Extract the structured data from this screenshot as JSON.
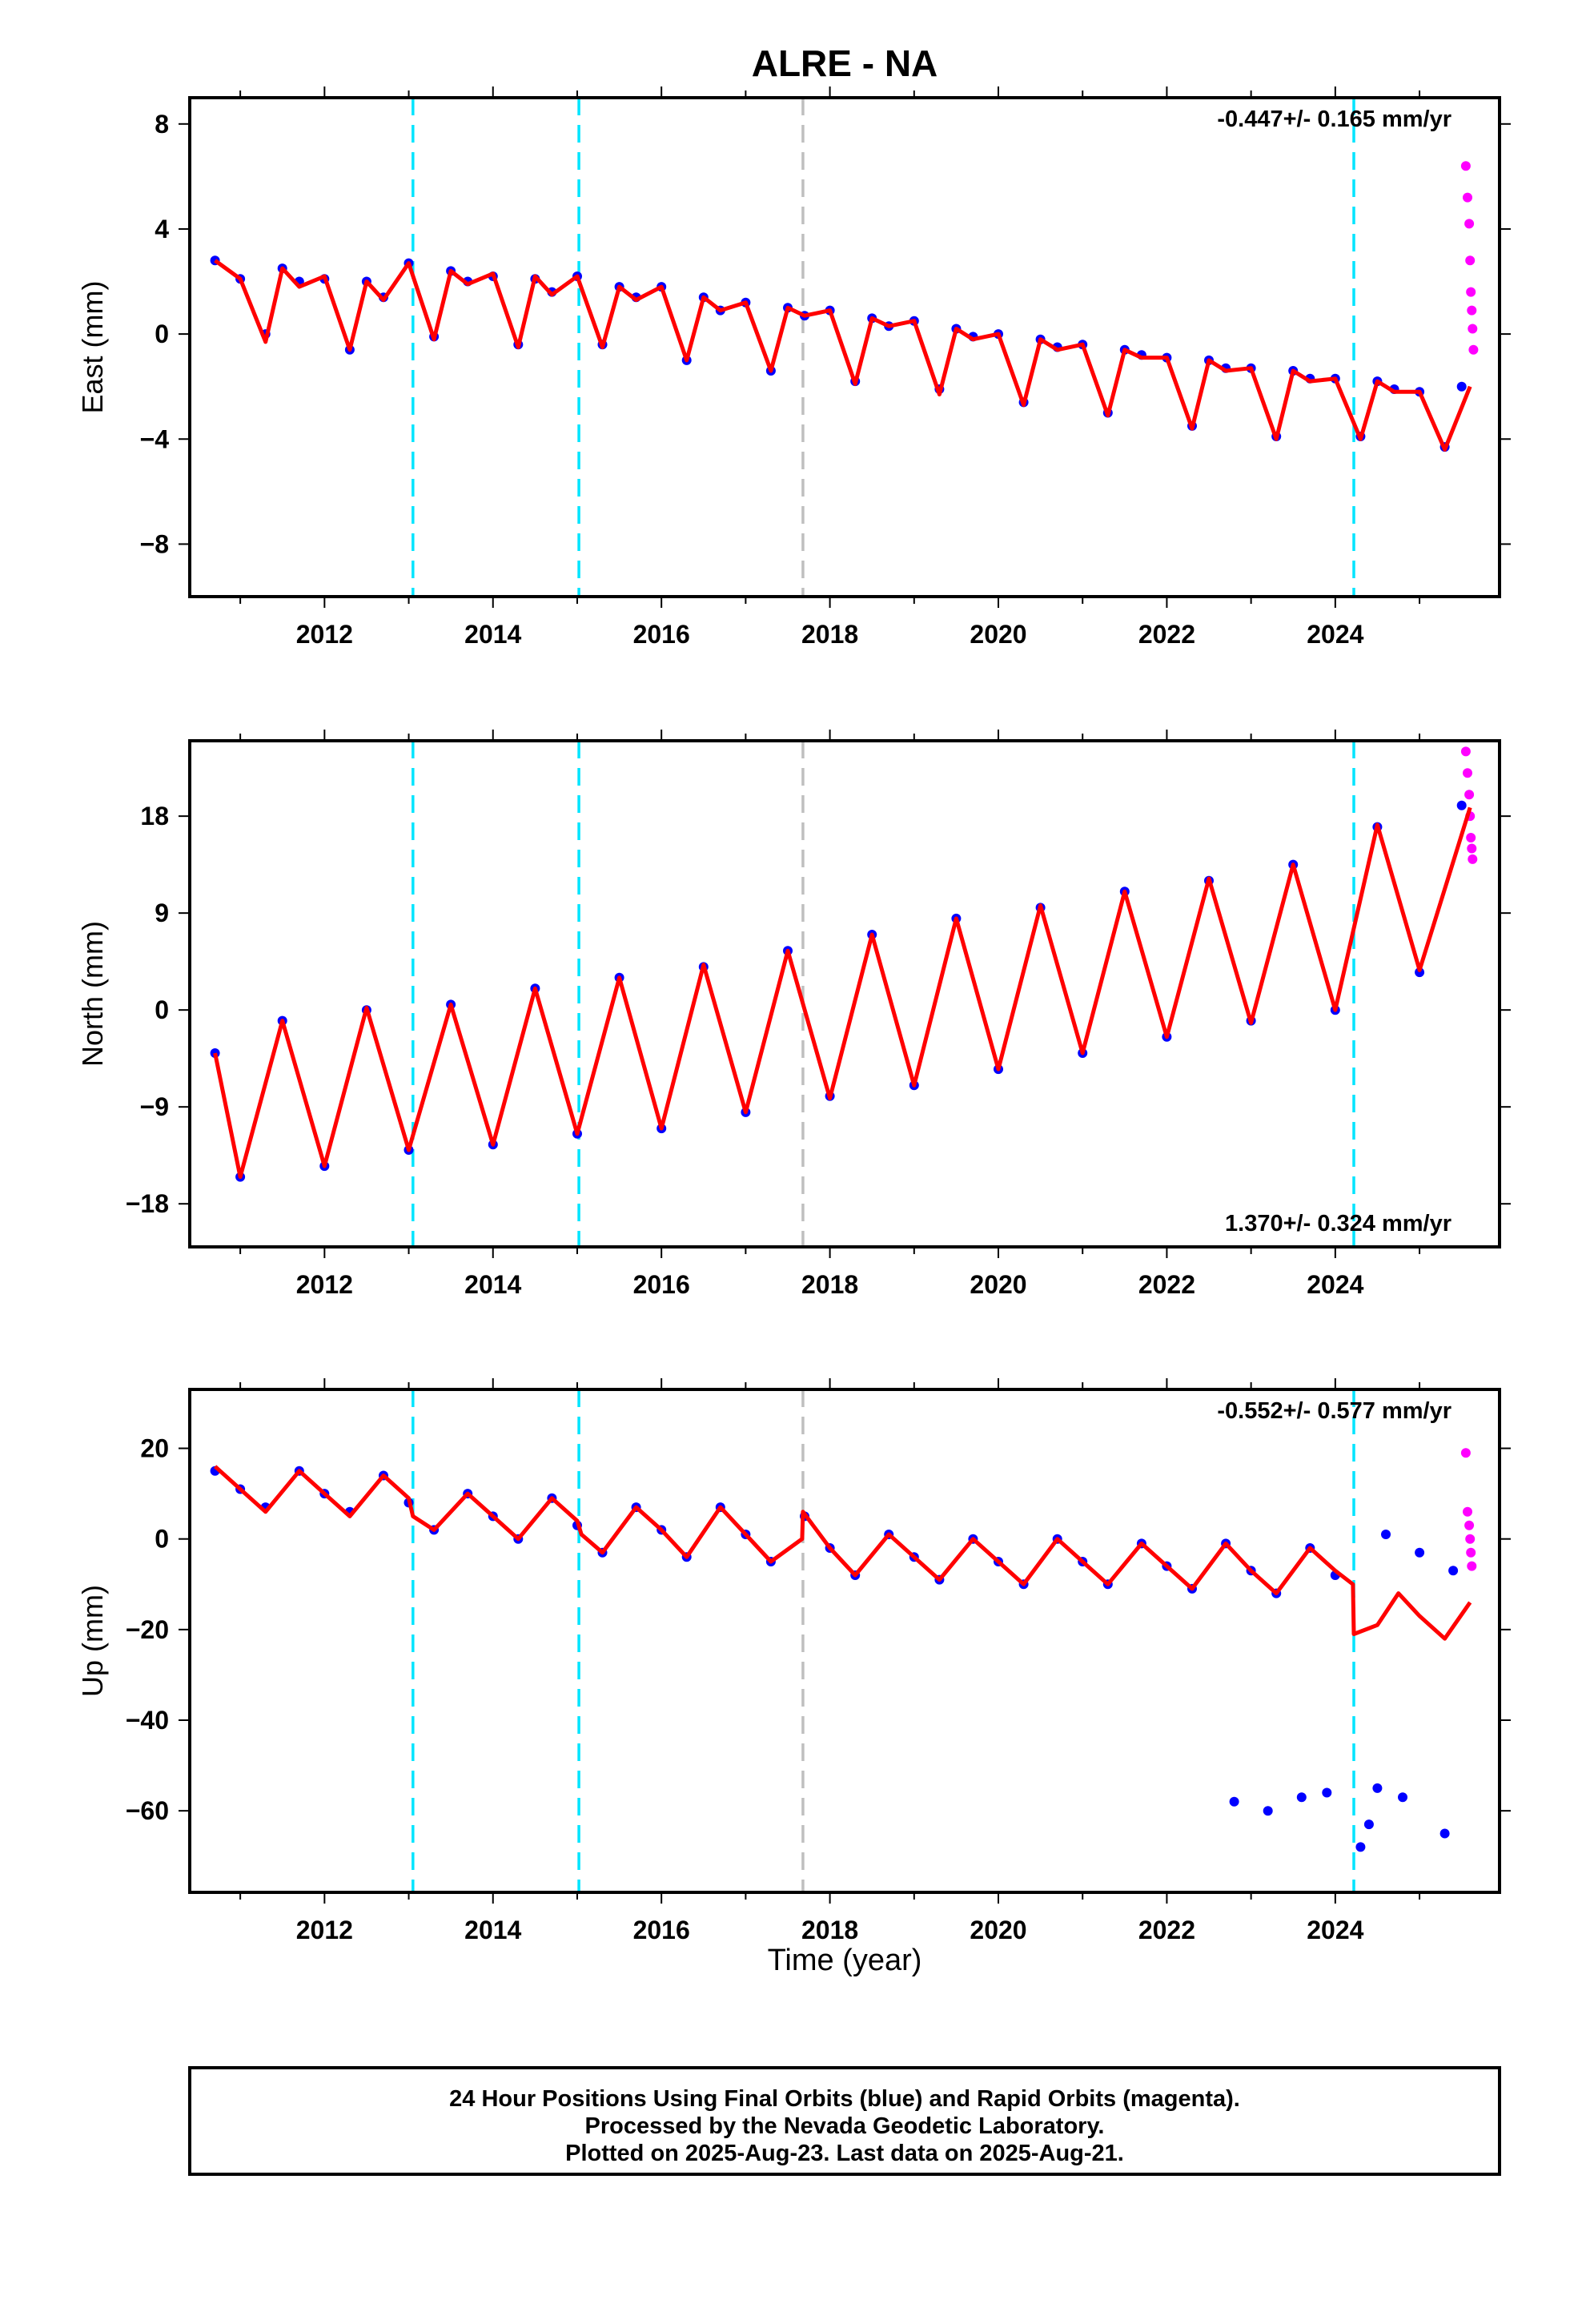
{
  "title": "ALRE - NA",
  "xlabel": "Time (year)",
  "footer": [
    "24 Hour Positions Using Final Orbits (blue) and Rapid Orbits (magenta).",
    "Processed by the Nevada Geodetic Laboratory.",
    "Plotted on 2025-Aug-23. Last data on 2025-Aug-21."
  ],
  "colors": {
    "final_orbits": "#0000ff",
    "rapid_orbits": "#ff00ff",
    "model_fit": "#ff0000",
    "equipment_change": "#00e5ff",
    "other_event": "#bfbfbf"
  },
  "chart_data": [
    {
      "type": "scatter",
      "panel": "east",
      "title": "ALRE - NA",
      "xlabel": "",
      "ylabel": "East (mm)",
      "xlim": [
        2010.4,
        2025.95
      ],
      "ylim": [
        -10,
        9
      ],
      "xticks": [
        2012,
        2014,
        2016,
        2018,
        2020,
        2022,
        2024
      ],
      "yticks": [
        -8,
        -4,
        0,
        4,
        8
      ],
      "ytick_labels": [
        "−8",
        "−4",
        "0",
        "4",
        "8"
      ],
      "rate_text": "-0.447+/- 0.165 mm/yr",
      "rate_position": "top-right",
      "events": [
        {
          "year": 2013.05,
          "kind": "equipment_change"
        },
        {
          "year": 2015.02,
          "kind": "equipment_change"
        },
        {
          "year": 2017.68,
          "kind": "other_event"
        },
        {
          "year": 2024.22,
          "kind": "equipment_change"
        }
      ],
      "series": [
        {
          "name": "Final Orbits",
          "color": "#0000ff",
          "x": [
            2010.7,
            2011.0,
            2011.3,
            2011.5,
            2011.7,
            2012.0,
            2012.3,
            2012.5,
            2012.7,
            2013.0,
            2013.3,
            2013.5,
            2013.7,
            2014.0,
            2014.3,
            2014.5,
            2014.7,
            2015.0,
            2015.3,
            2015.5,
            2015.7,
            2016.0,
            2016.3,
            2016.5,
            2016.7,
            2017.0,
            2017.3,
            2017.5,
            2017.7,
            2018.0,
            2018.3,
            2018.5,
            2018.7,
            2019.0,
            2019.3,
            2019.5,
            2019.7,
            2020.0,
            2020.3,
            2020.5,
            2020.7,
            2021.0,
            2021.3,
            2021.5,
            2021.7,
            2022.0,
            2022.3,
            2022.5,
            2022.7,
            2023.0,
            2023.3,
            2023.5,
            2023.7,
            2024.0,
            2024.3,
            2024.5,
            2024.7,
            2025.0,
            2025.3,
            2025.5
          ],
          "y": [
            2.8,
            2.1,
            0.0,
            2.5,
            2.0,
            2.1,
            -0.6,
            2.0,
            1.4,
            2.7,
            -0.1,
            2.4,
            2.0,
            2.2,
            -0.4,
            2.1,
            1.6,
            2.2,
            -0.4,
            1.8,
            1.4,
            1.8,
            -1.0,
            1.4,
            0.9,
            1.2,
            -1.4,
            1.0,
            0.7,
            0.9,
            -1.8,
            0.6,
            0.3,
            0.5,
            -2.1,
            0.2,
            -0.1,
            0.0,
            -2.6,
            -0.2,
            -0.5,
            -0.4,
            -3.0,
            -0.6,
            -0.8,
            -0.9,
            -3.5,
            -1.0,
            -1.3,
            -1.3,
            -3.9,
            -1.4,
            -1.7,
            -1.7,
            -3.9,
            -1.8,
            -2.1,
            -2.2,
            -4.3,
            -2.0
          ]
        },
        {
          "name": "Rapid Orbits",
          "color": "#ff00ff",
          "x": [
            2025.55,
            2025.57,
            2025.59,
            2025.6,
            2025.61,
            2025.62,
            2025.63,
            2025.64
          ],
          "y": [
            6.4,
            5.2,
            4.2,
            2.8,
            1.6,
            0.9,
            0.2,
            -0.6
          ]
        },
        {
          "name": "Model fit",
          "color": "#ff0000",
          "x": [
            2010.7,
            2011.0,
            2011.3,
            2011.5,
            2011.7,
            2012.0,
            2012.3,
            2012.5,
            2012.7,
            2013.0,
            2013.3,
            2013.5,
            2013.7,
            2014.0,
            2014.3,
            2014.5,
            2014.7,
            2015.0,
            2015.3,
            2015.5,
            2015.7,
            2016.0,
            2016.3,
            2016.5,
            2016.7,
            2017.0,
            2017.3,
            2017.5,
            2017.7,
            2018.0,
            2018.3,
            2018.5,
            2018.7,
            2019.0,
            2019.3,
            2019.5,
            2019.7,
            2020.0,
            2020.3,
            2020.5,
            2020.7,
            2021.0,
            2021.3,
            2021.5,
            2021.7,
            2022.0,
            2022.3,
            2022.5,
            2022.7,
            2023.0,
            2023.3,
            2023.5,
            2023.7,
            2024.0,
            2024.3,
            2024.5,
            2024.7,
            2025.0,
            2025.3,
            2025.6
          ],
          "y": [
            2.8,
            2.1,
            -0.3,
            2.5,
            1.8,
            2.2,
            -0.6,
            2.0,
            1.3,
            2.7,
            -0.2,
            2.4,
            1.9,
            2.3,
            -0.5,
            2.2,
            1.5,
            2.2,
            -0.5,
            1.8,
            1.3,
            1.8,
            -1.0,
            1.4,
            0.9,
            1.2,
            -1.4,
            1.0,
            0.7,
            0.9,
            -1.9,
            0.6,
            0.3,
            0.5,
            -2.3,
            0.2,
            -0.2,
            0.0,
            -2.7,
            -0.2,
            -0.6,
            -0.4,
            -3.1,
            -0.6,
            -0.9,
            -0.9,
            -3.6,
            -1.0,
            -1.4,
            -1.3,
            -4.0,
            -1.4,
            -1.8,
            -1.7,
            -4.0,
            -1.8,
            -2.2,
            -2.2,
            -4.4,
            -2.0
          ]
        }
      ]
    },
    {
      "type": "scatter",
      "panel": "north",
      "xlabel": "",
      "ylabel": "North (mm)",
      "xlim": [
        2010.4,
        2025.95
      ],
      "ylim": [
        -22,
        25
      ],
      "xticks": [
        2012,
        2014,
        2016,
        2018,
        2020,
        2022,
        2024
      ],
      "yticks": [
        -18,
        -9,
        0,
        9,
        18
      ],
      "ytick_labels": [
        "−18",
        "−9",
        "0",
        "9",
        "18"
      ],
      "rate_text": "1.370+/- 0.324 mm/yr",
      "rate_position": "bottom-right",
      "events": [
        {
          "year": 2013.05,
          "kind": "equipment_change"
        },
        {
          "year": 2015.02,
          "kind": "equipment_change"
        },
        {
          "year": 2017.68,
          "kind": "other_event"
        },
        {
          "year": 2024.22,
          "kind": "equipment_change"
        }
      ],
      "series": [
        {
          "name": "Final Orbits",
          "color": "#0000ff",
          "x": [
            2010.7,
            2011.0,
            2011.5,
            2012.0,
            2012.5,
            2013.0,
            2013.5,
            2014.0,
            2014.5,
            2015.0,
            2015.5,
            2016.0,
            2016.5,
            2017.0,
            2017.5,
            2018.0,
            2018.5,
            2019.0,
            2019.5,
            2020.0,
            2020.5,
            2021.0,
            2021.5,
            2022.0,
            2022.5,
            2023.0,
            2023.5,
            2024.0,
            2024.5,
            2025.0,
            2025.5
          ],
          "y": [
            -4,
            -15.5,
            -1,
            -14.5,
            0,
            -13,
            0.5,
            -12.5,
            2,
            -11.5,
            3,
            -11,
            4,
            -9.5,
            5.5,
            -8,
            7,
            -7,
            8.5,
            -5.5,
            9.5,
            -4,
            11,
            -2.5,
            12,
            -1,
            13.5,
            0,
            17,
            3.5,
            19
          ]
        },
        {
          "name": "Rapid Orbits",
          "color": "#ff00ff",
          "x": [
            2025.55,
            2025.57,
            2025.59,
            2025.6,
            2025.61,
            2025.62,
            2025.63
          ],
          "y": [
            24,
            22,
            20,
            18,
            16,
            15,
            14
          ]
        },
        {
          "name": "Model fit",
          "color": "#ff0000",
          "x": [
            2010.7,
            2011.0,
            2011.5,
            2012.0,
            2012.5,
            2013.0,
            2013.5,
            2014.0,
            2014.5,
            2015.0,
            2015.5,
            2016.0,
            2016.5,
            2017.0,
            2017.5,
            2018.0,
            2018.5,
            2019.0,
            2019.5,
            2020.0,
            2020.5,
            2021.0,
            2021.5,
            2022.0,
            2022.5,
            2023.0,
            2023.5,
            2024.0,
            2024.5,
            2025.0,
            2025.6
          ],
          "y": [
            -4,
            -15.5,
            -1,
            -14.5,
            0.2,
            -13,
            0.5,
            -12.5,
            2,
            -11.5,
            3,
            -11,
            4.2,
            -9.5,
            5.5,
            -8.2,
            7,
            -7,
            8.5,
            -5.5,
            9.7,
            -4,
            11,
            -2.5,
            12.2,
            -1.2,
            13.5,
            0,
            17.2,
            3.7,
            18.8
          ]
        }
      ]
    },
    {
      "type": "scatter",
      "panel": "up",
      "xlabel": "Time (year)",
      "ylabel": "Up (mm)",
      "xlim": [
        2010.4,
        2025.95
      ],
      "ylim": [
        -78,
        33
      ],
      "xticks": [
        2012,
        2014,
        2016,
        2018,
        2020,
        2022,
        2024
      ],
      "yticks": [
        -60,
        -40,
        -20,
        0,
        20
      ],
      "ytick_labels": [
        "−60",
        "−40",
        "−20",
        "0",
        "20"
      ],
      "rate_text": "-0.552+/- 0.577 mm/yr",
      "rate_position": "top-right",
      "events": [
        {
          "year": 2013.05,
          "kind": "equipment_change"
        },
        {
          "year": 2015.02,
          "kind": "equipment_change"
        },
        {
          "year": 2017.68,
          "kind": "other_event"
        },
        {
          "year": 2024.22,
          "kind": "equipment_change"
        }
      ],
      "series": [
        {
          "name": "Final Orbits",
          "color": "#0000ff",
          "x": [
            2010.7,
            2011.0,
            2011.3,
            2011.7,
            2012.0,
            2012.3,
            2012.7,
            2013.0,
            2013.3,
            2013.7,
            2014.0,
            2014.3,
            2014.7,
            2015.0,
            2015.3,
            2015.7,
            2016.0,
            2016.3,
            2016.7,
            2017.0,
            2017.3,
            2017.7,
            2018.0,
            2018.3,
            2018.7,
            2019.0,
            2019.3,
            2019.7,
            2020.0,
            2020.3,
            2020.7,
            2021.0,
            2021.3,
            2021.7,
            2022.0,
            2022.3,
            2022.7,
            2023.0,
            2023.3,
            2023.7,
            2024.0,
            2024.6,
            2025.0,
            2025.4,
            2022.8,
            2023.2,
            2023.6,
            2023.9,
            2024.3,
            2024.4,
            2024.5,
            2024.8,
            2025.3
          ],
          "y": [
            15,
            11,
            7,
            15,
            10,
            6,
            14,
            8,
            2,
            10,
            5,
            0,
            9,
            3,
            -3,
            7,
            2,
            -4,
            7,
            1,
            -5,
            5,
            -2,
            -8,
            1,
            -4,
            -9,
            0,
            -5,
            -10,
            0,
            -5,
            -10,
            -1,
            -6,
            -11,
            -1,
            -7,
            -12,
            -2,
            -8,
            1,
            -3,
            -7,
            -58,
            -60,
            -57,
            -56,
            -68,
            -63,
            -55,
            -57,
            -65
          ]
        },
        {
          "name": "Rapid Orbits",
          "color": "#ff00ff",
          "x": [
            2025.55,
            2025.57,
            2025.59,
            2025.6,
            2025.61,
            2025.62
          ],
          "y": [
            19,
            6,
            3,
            0,
            -3,
            -6
          ]
        },
        {
          "name": "Model fit",
          "color": "#ff0000",
          "x": [
            2010.7,
            2011.0,
            2011.3,
            2011.7,
            2012.0,
            2012.3,
            2012.7,
            2013.0,
            2013.05,
            2013.3,
            2013.7,
            2014.0,
            2014.3,
            2014.7,
            2015.0,
            2015.05,
            2015.3,
            2015.7,
            2016.0,
            2016.3,
            2016.7,
            2017.0,
            2017.3,
            2017.67,
            2017.68,
            2018.0,
            2018.3,
            2018.7,
            2019.0,
            2019.3,
            2019.7,
            2020.0,
            2020.3,
            2020.7,
            2021.0,
            2021.3,
            2021.7,
            2022.0,
            2022.3,
            2022.7,
            2023.0,
            2023.3,
            2023.7,
            2024.0,
            2024.21,
            2024.22,
            2024.5,
            2024.75,
            2025.0,
            2025.3,
            2025.6
          ],
          "y": [
            16,
            11,
            6,
            15,
            10,
            5,
            14,
            9,
            5,
            2,
            10,
            5,
            0,
            9,
            4,
            1,
            -3,
            7,
            2,
            -4,
            7,
            1,
            -5,
            0,
            6,
            -2,
            -8,
            1,
            -4,
            -9,
            0,
            -5,
            -10,
            0,
            -5,
            -10,
            -1,
            -6,
            -11,
            -1,
            -7,
            -12,
            -2,
            -7,
            -10,
            -21,
            -19,
            -12,
            -17,
            -22,
            -14
          ]
        }
      ]
    }
  ]
}
